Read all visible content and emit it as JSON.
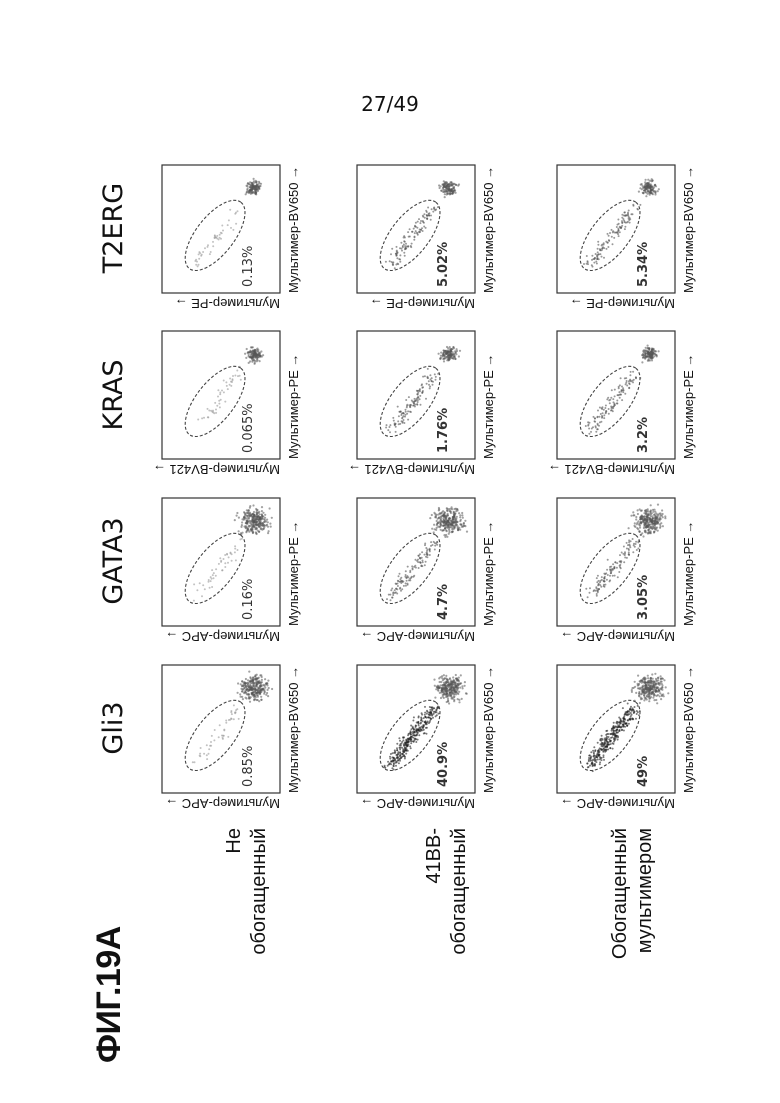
{
  "page_number": "27/49",
  "figure_title": "ФИГ.19А",
  "rows": [
    {
      "label_lines": [
        "Не",
        "обогащенный"
      ]
    },
    {
      "label_lines": [
        "41ВВ-",
        "обогащенный"
      ]
    },
    {
      "label_lines": [
        "Обогащенный",
        "мультимером"
      ]
    }
  ],
  "columns": [
    {
      "title": "Gli3",
      "x_axis": "Мультимер-BV650",
      "y_axis": "Мультимер-APC",
      "values": [
        "0.85%",
        "40.9%",
        "49%"
      ],
      "bold": [
        false,
        true,
        true
      ]
    },
    {
      "title": "GATA3",
      "x_axis": "Мультимер-PE",
      "y_axis": "Мультимер-APC",
      "values": [
        "0.16%",
        "4.7%",
        "3.05%"
      ],
      "bold": [
        false,
        true,
        true
      ]
    },
    {
      "title": "KRAS",
      "x_axis": "Мультимер-PE",
      "y_axis": "Мультимер-BV421",
      "values": [
        "0.065%",
        "1.76%",
        "3.2%"
      ],
      "bold": [
        false,
        true,
        true
      ]
    },
    {
      "title": "T2ERG",
      "x_axis": "Мультимер-BV650",
      "y_axis": "Мультимер-PE",
      "values": [
        "0.13%",
        "5.02%",
        "5.34%"
      ],
      "bold": [
        false,
        true,
        true
      ]
    }
  ]
}
